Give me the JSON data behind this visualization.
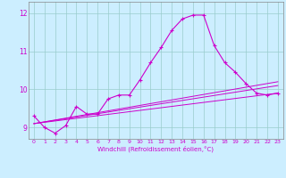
{
  "title": "",
  "xlabel": "Windchill (Refroidissement éolien,°C)",
  "ylabel": "",
  "background_color": "#cceeff",
  "line_color": "#cc00cc",
  "grid_color": "#99cccc",
  "xlim": [
    -0.5,
    23.5
  ],
  "ylim": [
    8.7,
    12.3
  ],
  "yticks": [
    9,
    10,
    11,
    12
  ],
  "xticks": [
    0,
    1,
    2,
    3,
    4,
    5,
    6,
    7,
    8,
    9,
    10,
    11,
    12,
    13,
    14,
    15,
    16,
    17,
    18,
    19,
    20,
    21,
    22,
    23
  ],
  "main_x": [
    0,
    1,
    2,
    3,
    4,
    5,
    6,
    7,
    8,
    9,
    10,
    11,
    12,
    13,
    14,
    15,
    16,
    17,
    18,
    19,
    20,
    21,
    22,
    23
  ],
  "main_y": [
    9.3,
    9.0,
    8.85,
    9.05,
    9.55,
    9.35,
    9.35,
    9.75,
    9.85,
    9.85,
    10.25,
    10.7,
    11.1,
    11.55,
    11.85,
    11.95,
    11.95,
    11.15,
    10.7,
    10.45,
    10.15,
    9.9,
    9.85,
    9.9
  ],
  "line2_x": [
    0,
    23
  ],
  "line2_y": [
    9.1,
    9.9
  ],
  "line3_x": [
    0,
    23
  ],
  "line3_y": [
    9.1,
    10.1
  ],
  "line4_x": [
    0,
    23
  ],
  "line4_y": [
    9.1,
    10.2
  ]
}
